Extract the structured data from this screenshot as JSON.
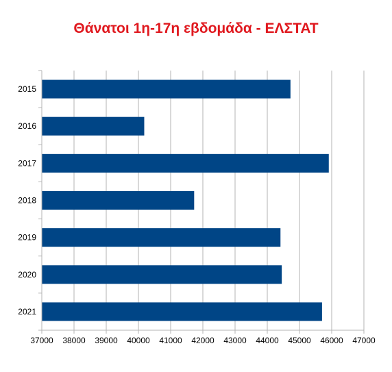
{
  "chart_data": {
    "type": "bar",
    "orientation": "horizontal",
    "title": "Θάνατοι 1η-17η εβδομάδα - ΕΛΣΤΑΤ",
    "categories": [
      "2015",
      "2016",
      "2017",
      "2018",
      "2019",
      "2020",
      "2021"
    ],
    "values": [
      44720,
      40180,
      45910,
      41730,
      44410,
      44450,
      45700
    ],
    "xlabel": "",
    "ylabel": "",
    "xlim": [
      37000,
      47000
    ],
    "x_ticks": [
      "37000",
      "38000",
      "39000",
      "40000",
      "41000",
      "42000",
      "43000",
      "44000",
      "45000",
      "46000",
      "47000"
    ],
    "grid": "vertical",
    "legend": "none"
  },
  "colors": {
    "title": "#e0191f",
    "bar": "#004586",
    "grid": "#b3b3b3",
    "axis": "#b3b3b3"
  }
}
